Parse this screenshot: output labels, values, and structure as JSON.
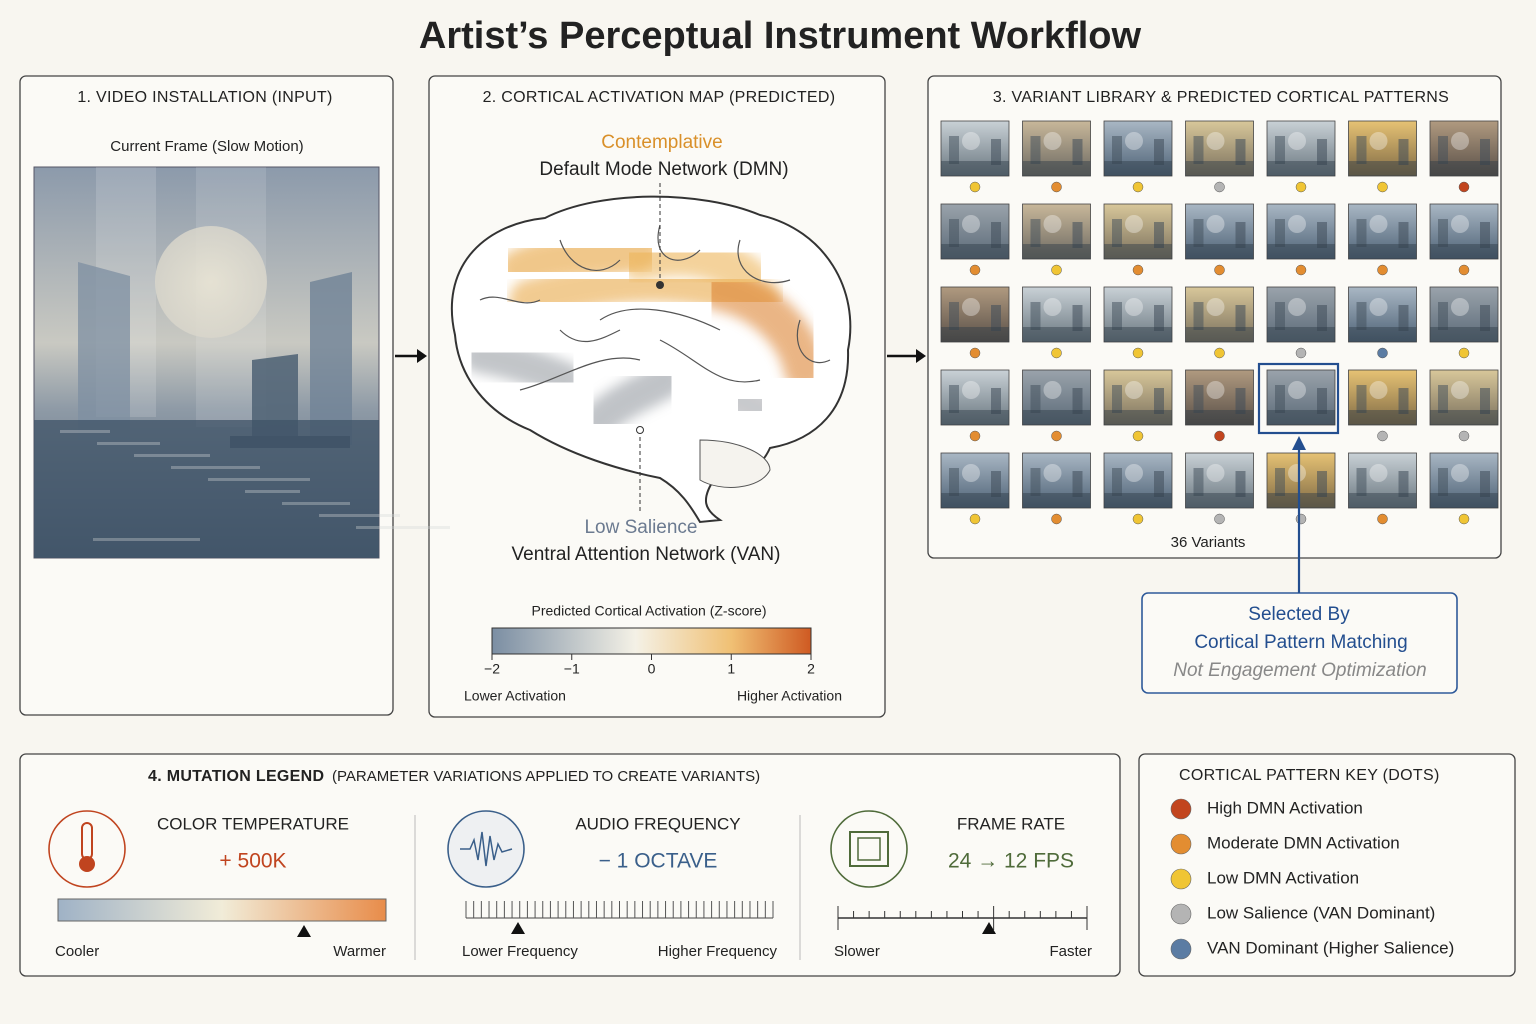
{
  "title": "Artist’s Perceptual Instrument Workflow",
  "input_panel": {
    "heading": "1. VIDEO INSTALLATION (INPUT)",
    "caption": "Current Frame (Slow Motion)"
  },
  "activation_panel": {
    "heading": "2. CORTICAL ACTIVATION MAP (PREDICTED)",
    "dmn": {
      "tag": "Contemplative",
      "name": "Default Mode Network (DMN)"
    },
    "van": {
      "tag": "Low Salience",
      "name": "Ventral Attention Network (VAN)"
    },
    "colorbar": {
      "title": "Predicted Cortical Activation (Z-score)",
      "ticks": [
        "−2",
        "−1",
        "0",
        "1",
        "2"
      ],
      "low_label": "Lower Activation",
      "high_label": "Higher Activation"
    }
  },
  "library_panel": {
    "heading": "3. VARIANT LIBRARY & PREDICTED CORTICAL PATTERNS",
    "count_label": "36 Variants"
  },
  "selection": {
    "lines": [
      "Selected By",
      "Cortical Pattern Matching"
    ],
    "note": "Not Engagement Optimization"
  },
  "mutation_legend": {
    "heading": "4. MUTATION LEGEND",
    "subheading": "(PARAMETER VARIATIONS APPLIED TO CREATE VARIANTS)",
    "items": [
      {
        "title": "COLOR TEMPERATURE",
        "value": "+ 500K",
        "low": "Cooler",
        "high": "Warmer"
      },
      {
        "title": "AUDIO FREQUENCY",
        "value": "− 1 OCTAVE",
        "low": "Lower Frequency",
        "high": "Higher Frequency"
      },
      {
        "title": "FRAME RATE",
        "value": "24 → 12 FPS",
        "low": "Slower",
        "high": "Faster"
      }
    ]
  },
  "pattern_key": {
    "heading": "CORTICAL PATTERN KEY (DOTS)",
    "items": [
      {
        "label": "High DMN Activation",
        "color": "#c2451e"
      },
      {
        "label": "Moderate DMN Activation",
        "color": "#e38d31"
      },
      {
        "label": "Low DMN Activation",
        "color": "#f0c534"
      },
      {
        "label": "Low Salience (VAN Dominant)",
        "color": "#b4b4b4"
      },
      {
        "label": "VAN Dominant (Higher Salience)",
        "color": "#5b7ca3"
      }
    ]
  }
}
